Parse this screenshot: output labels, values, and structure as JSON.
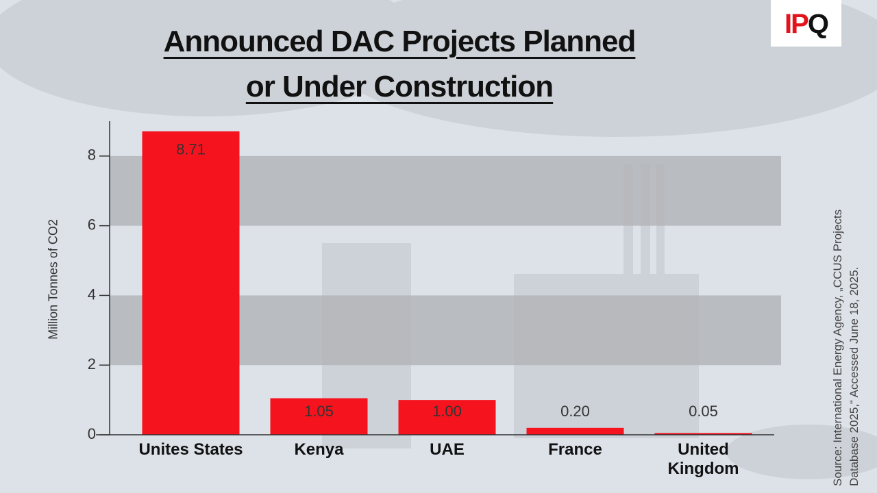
{
  "logo": [
    "IP",
    "Q"
  ],
  "chart_data": {
    "type": "bar",
    "title": "Announced DAC Projects Planned or Under Construction",
    "y_label": "Million Tonnes of CO2",
    "source": "Source: International Energy Agency, „CCUS Projects Database 2025,“ Accessed June 18, 2025.",
    "categories": [
      "Unites States",
      "Kenya",
      "UAE",
      "France",
      "United Kingdom"
    ],
    "values": [
      8.71,
      1.05,
      1.0,
      0.2,
      0.05
    ],
    "value_labels": [
      "8.71",
      "1.05",
      "1.00",
      "0.20",
      "0.05"
    ],
    "color": "#f5141e",
    "ylim": [
      0,
      9
    ],
    "yticks": [
      0,
      2,
      4,
      6,
      8
    ],
    "grid": "bands",
    "band_color": "#b3b5b9"
  }
}
